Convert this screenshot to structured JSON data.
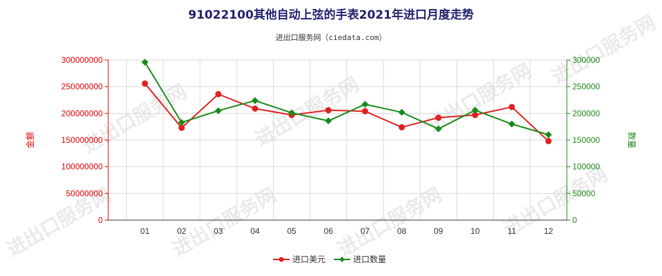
{
  "chart_data": {
    "type": "line",
    "title": "91022100其他自动上弦的手表2021年进口月度走势",
    "subtitle": "进出口服务网（ciedata.com）",
    "watermark": "进出口服务网",
    "categories": [
      "01",
      "02",
      "03",
      "04",
      "05",
      "06",
      "07",
      "08",
      "09",
      "10",
      "11",
      "12"
    ],
    "left_axis": {
      "label": "金额",
      "ylim": [
        0,
        300000000
      ],
      "ticks": [
        "0",
        "50000000",
        "100000000",
        "150000000",
        "200000000",
        "250000000",
        "300000000"
      ],
      "color": "#dd0000"
    },
    "right_axis": {
      "label": "数量",
      "ylim": [
        0,
        300000
      ],
      "ticks": [
        "0",
        "50000",
        "100000",
        "150000",
        "200000",
        "250000",
        "300000"
      ],
      "color": "#1a8a1a"
    },
    "series": [
      {
        "name": "进口美元",
        "axis": "left",
        "color": "#e02020",
        "marker": "circle",
        "values": [
          256000000,
          173000000,
          236000000,
          209000000,
          197000000,
          206000000,
          204000000,
          174000000,
          192000000,
          197000000,
          212000000,
          148000000
        ]
      },
      {
        "name": "进口数量",
        "axis": "right",
        "color": "#1a8a1a",
        "marker": "diamond",
        "values": [
          296000,
          183000,
          205000,
          224000,
          201000,
          186000,
          217000,
          202000,
          171000,
          206000,
          180000,
          160000
        ]
      }
    ],
    "grid": true,
    "legend_position": "bottom-center"
  }
}
